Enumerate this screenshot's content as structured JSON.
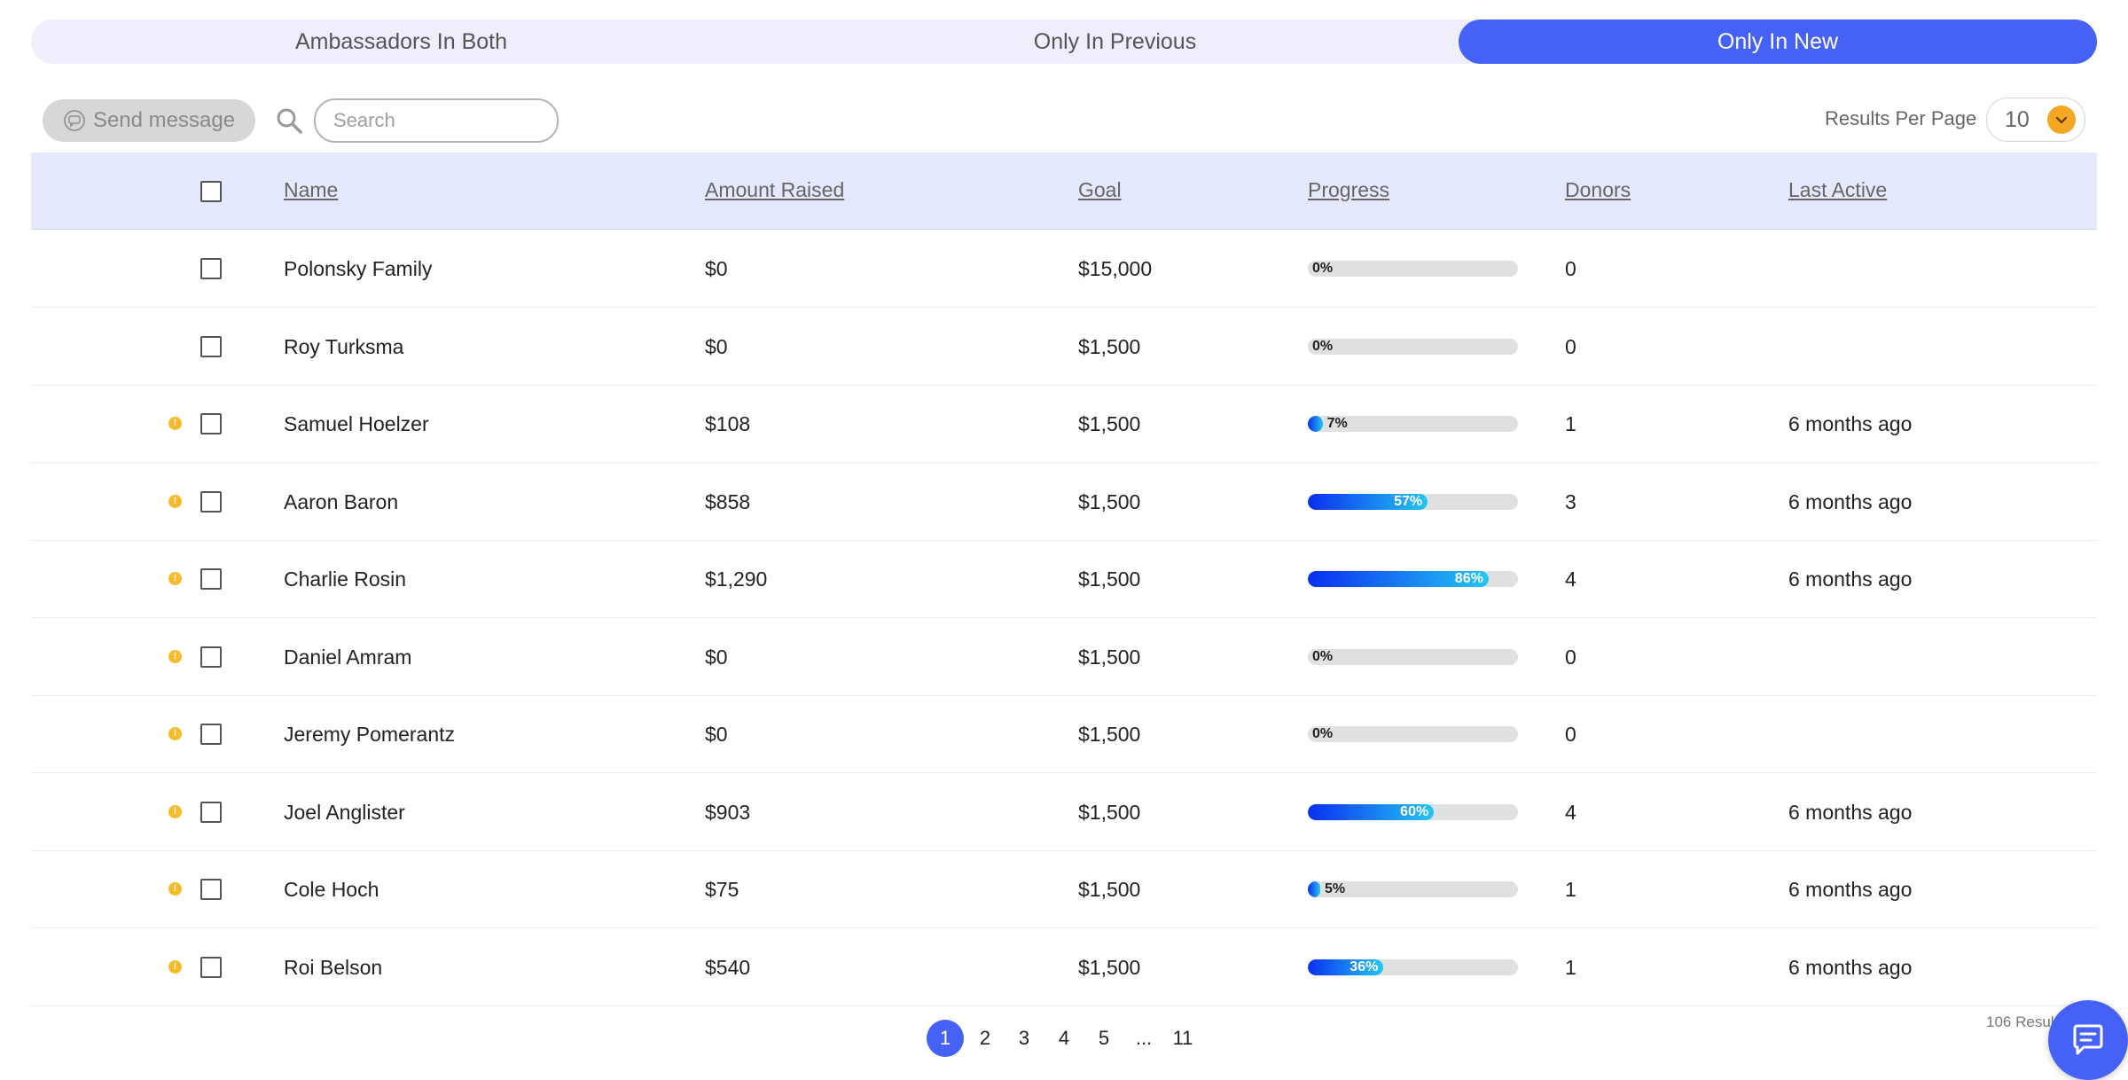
{
  "tabs": [
    {
      "label": "Ambassadors In Both",
      "active": false
    },
    {
      "label": "Only In Previous",
      "active": false
    },
    {
      "label": "Only In New",
      "active": true
    }
  ],
  "toolbar": {
    "send_label": "Send message",
    "send_icon": "message-icon",
    "search_icon": "search-icon",
    "search_placeholder": "Search",
    "search_value": "",
    "rpp_label": "Results Per Page",
    "rpp_value": "10"
  },
  "table": {
    "columns": [
      "Name",
      "Amount Raised",
      "Goal",
      "Progress",
      "Donors",
      "Last Active"
    ],
    "rows": [
      {
        "warning": false,
        "name": "Polonsky Family",
        "amount": "$0",
        "goal": "$15,000",
        "progress": 0,
        "progress_label": "0%",
        "donors": "0",
        "last_active": ""
      },
      {
        "warning": false,
        "name": "Roy Turksma",
        "amount": "$0",
        "goal": "$1,500",
        "progress": 0,
        "progress_label": "0%",
        "donors": "0",
        "last_active": ""
      },
      {
        "warning": true,
        "name": "Samuel Hoelzer",
        "amount": "$108",
        "goal": "$1,500",
        "progress": 7,
        "progress_label": "7%",
        "donors": "1",
        "last_active": "6 months ago"
      },
      {
        "warning": true,
        "name": "Aaron Baron",
        "amount": "$858",
        "goal": "$1,500",
        "progress": 57,
        "progress_label": "57%",
        "donors": "3",
        "last_active": "6 months ago"
      },
      {
        "warning": true,
        "name": "Charlie Rosin",
        "amount": "$1,290",
        "goal": "$1,500",
        "progress": 86,
        "progress_label": "86%",
        "donors": "4",
        "last_active": "6 months ago"
      },
      {
        "warning": true,
        "name": "Daniel Amram",
        "amount": "$0",
        "goal": "$1,500",
        "progress": 0,
        "progress_label": "0%",
        "donors": "0",
        "last_active": ""
      },
      {
        "warning": true,
        "name": "Jeremy Pomerantz",
        "amount": "$0",
        "goal": "$1,500",
        "progress": 0,
        "progress_label": "0%",
        "donors": "0",
        "last_active": ""
      },
      {
        "warning": true,
        "name": "Joel Anglister",
        "amount": "$903",
        "goal": "$1,500",
        "progress": 60,
        "progress_label": "60%",
        "donors": "4",
        "last_active": "6 months ago"
      },
      {
        "warning": true,
        "name": "Cole Hoch",
        "amount": "$75",
        "goal": "$1,500",
        "progress": 5,
        "progress_label": "5%",
        "donors": "1",
        "last_active": "6 months ago"
      },
      {
        "warning": true,
        "name": "Roi Belson",
        "amount": "$540",
        "goal": "$1,500",
        "progress": 36,
        "progress_label": "36%",
        "donors": "1",
        "last_active": "6 months ago"
      }
    ]
  },
  "pagination": {
    "pages": [
      "1",
      "2",
      "3",
      "4",
      "5",
      "...",
      "11"
    ],
    "current": "1",
    "results_text": "106 Resul"
  },
  "colors": {
    "accent": "#4661f5",
    "warning": "#f6bb2a",
    "header_bg": "#e5e9fd",
    "tab_bg": "#eeeffb"
  },
  "chat_icon": "chat-icon"
}
